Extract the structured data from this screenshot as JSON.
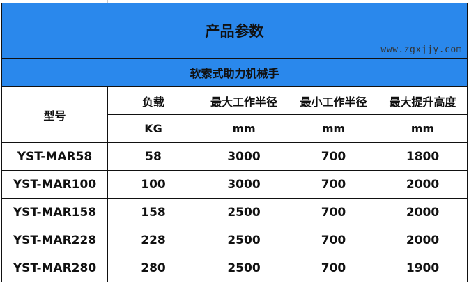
{
  "title": "产品参数",
  "subtitle": "软索式助力机械手",
  "headers": {
    "model": "型号",
    "columns": [
      {
        "label": "负载",
        "unit": "KG"
      },
      {
        "label": "最大工作半径",
        "unit": "mm"
      },
      {
        "label": "最小工作半径",
        "unit": "mm"
      },
      {
        "label": "最大提升高度",
        "unit": "mm"
      }
    ]
  },
  "rows": [
    [
      "YST-MAR58",
      "58",
      "3000",
      "700",
      "1800"
    ],
    [
      "YST-MAR100",
      "100",
      "3000",
      "700",
      "2000"
    ],
    [
      "YST-MAR158",
      "158",
      "2500",
      "700",
      "2000"
    ],
    [
      "YST-MAR228",
      "228",
      "2500",
      "700",
      "2000"
    ],
    [
      "YST-MAR280",
      "280",
      "2500",
      "700",
      "1900"
    ]
  ],
  "watermark": "www.zgxjjy.com",
  "colors": {
    "header_bg": "#2a88ec"
  }
}
